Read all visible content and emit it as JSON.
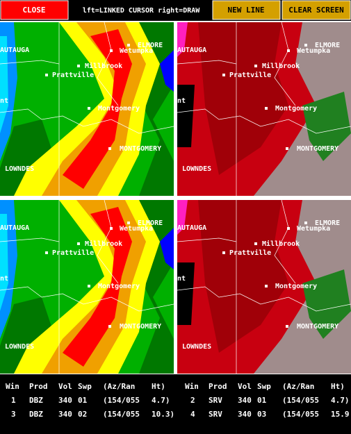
{
  "toolbar": {
    "close": "CLOSE",
    "hint": "lft=LINKED CURSOR  right=DRAW",
    "new_line": "NEW LINE",
    "clear_screen": "CLEAR SCREEN"
  },
  "places": [
    "AUTAUGA",
    "ELMORE",
    "Wetumpka",
    "Millbrook",
    "Prattville",
    "Montgomery",
    "MONTGOMERY",
    "LOWNDES",
    "nt"
  ],
  "table": {
    "header": [
      "Win",
      "Prod",
      "Vol",
      "Swp",
      "(Az/Ran",
      "Ht)"
    ],
    "rows": [
      [
        [
          "1",
          "DBZ",
          "340",
          "01",
          "(154/055",
          "4.7)"
        ],
        [
          "2",
          "SRV",
          "340",
          "01",
          "(154/055",
          "4.7)"
        ]
      ],
      [
        [
          "3",
          "DBZ",
          "340",
          "02",
          "(154/055",
          "10.3)"
        ],
        [
          "4",
          "SRV",
          "340",
          "03",
          "(154/055",
          "15.9"
        ]
      ]
    ]
  }
}
